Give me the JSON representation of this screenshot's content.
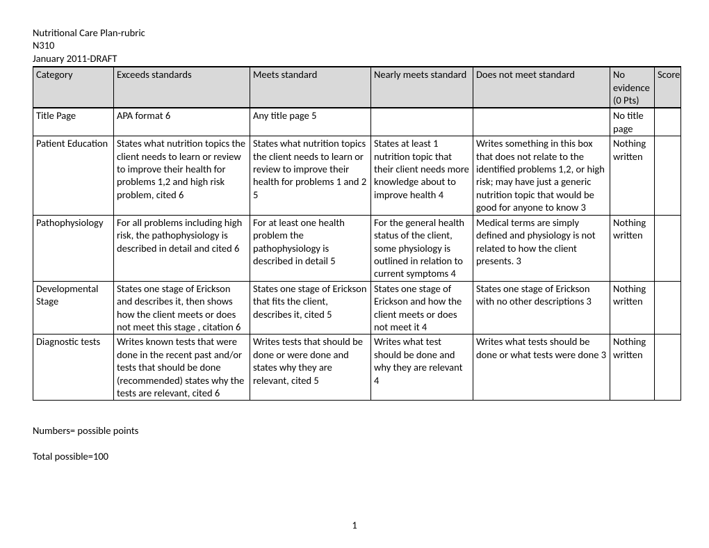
{
  "heading": {
    "line1": "Nutritional Care Plan-rubric",
    "line2": "N310",
    "line3": "January 2011-DRAFT"
  },
  "table": {
    "columns": [
      "Category",
      "Exceeds standards",
      "Meets standard",
      "Nearly meets standard",
      "Does not meet standard",
      "No evidence (0 Pts)",
      "Score"
    ],
    "rows": [
      {
        "category": "Title  Page",
        "exceeds": "APA format\n6",
        "meets": "Any title page\n5",
        "nearly": "",
        "doesnot": "",
        "noevidence": "No title page",
        "score": ""
      },
      {
        "category": "Patient Education",
        "exceeds": "States what  nutrition topics the client needs to learn or review to improve their health for problems 1,2 and high risk problem, cited\n6",
        "meets": "States what  nutrition topics the client needs to learn or review to improve their health for problems 1 and 2\n5",
        "nearly": "States at least 1 nutrition topic that their client needs more knowledge about to improve health  4",
        "doesnot": "Writes something in this box that does not relate to the identified problems 1,2, or high risk; may have just a  generic nutrition topic that would be good for anyone to know  3",
        "noevidence": "Nothing written",
        "score": ""
      },
      {
        "category": "Pathophysiology",
        "exceeds": "For all problems including high risk, the pathophysiology is described in detail and cited\n6",
        "meets": "For at least one health problem the pathophysiology is described in detail\n5",
        "nearly": "For the general health status of the client, some physiology is outlined in relation to current symptoms  4",
        "doesnot": "Medical terms are simply defined and physiology is not related to how the client presents.  3",
        "noevidence": "Nothing written",
        "score": ""
      },
      {
        "category": "Developmental Stage",
        "exceeds": "States one stage of Erickson and describes it, then shows how the client meets or does not meet this stage , citation\n6",
        "meets": "States one stage of Erickson that fits the client, describes it, cited\n5",
        "nearly": "States one stage of Erickson and how the client meets or does not meet it  4",
        "doesnot": "States one stage of Erickson with no other  descriptions 3",
        "noevidence": "Nothing written",
        "score": ""
      },
      {
        "category": "Diagnostic tests",
        "exceeds": "Writes known tests that were done in the recent past and/or tests that should be done (recommended) states why the tests are relevant, cited\n6",
        "meets": "Writes tests that should be done or were done and states why they are relevant, cited\n5",
        "nearly": "Writes what test should be done and why they are relevant\n4",
        "doesnot": "Writes what tests should be done or what tests were done\n3",
        "noevidence": "Nothing written",
        "score": ""
      }
    ]
  },
  "footer": {
    "note1": "Numbers= possible points",
    "note2": "Total possible=100"
  },
  "page_number": "1"
}
